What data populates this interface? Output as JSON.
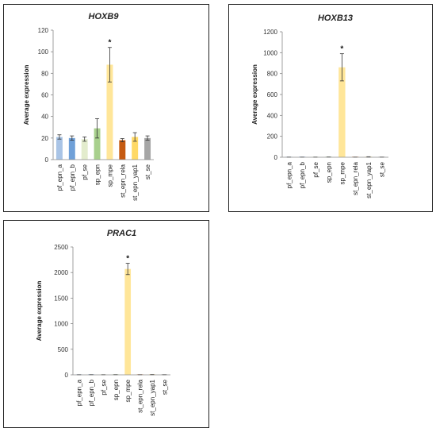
{
  "chart_data": [
    {
      "type": "bar",
      "title": "HOXB9",
      "ylabel": "Average expression",
      "xlabel": "",
      "ylim": [
        0,
        120
      ],
      "yticks": [
        0,
        20,
        40,
        60,
        80,
        100,
        120
      ],
      "categories": [
        "pf_epn_a",
        "pf_epn_b",
        "pf_se",
        "sp_epn",
        "sp_mpe",
        "st_epn_rela",
        "st_epn_yap1",
        "st_se"
      ],
      "values": [
        21,
        20,
        19,
        29,
        88,
        18,
        21,
        20
      ],
      "errors": [
        2,
        2,
        2,
        9,
        16,
        1.5,
        4,
        2
      ],
      "colors": [
        "#a9c4e6",
        "#6fa0d8",
        "#e3eccd",
        "#a8d08d",
        "#ffe699",
        "#c55a11",
        "#ffd966",
        "#a6a6a6"
      ],
      "annotations": [
        {
          "category": "sp_mpe",
          "text": "*"
        }
      ],
      "grid": false,
      "legend": "none"
    },
    {
      "type": "bar",
      "title": "HOXB13",
      "ylabel": "Average expression",
      "xlabel": "",
      "ylim": [
        0,
        1200
      ],
      "yticks": [
        0,
        200,
        400,
        600,
        800,
        1000,
        1200
      ],
      "categories": [
        "pf_epn_a",
        "pf_epn_b",
        "pf_se",
        "sp_epn",
        "sp_mpe",
        "st_epn_rela",
        "st_epn_yap1",
        "st_se"
      ],
      "values": [
        1,
        1,
        1,
        2,
        860,
        1,
        3,
        1
      ],
      "errors": [
        1,
        1,
        1,
        1,
        130,
        1,
        2,
        1
      ],
      "colors": [
        "#a9c4e6",
        "#6fa0d8",
        "#e3eccd",
        "#a8d08d",
        "#ffe699",
        "#c55a11",
        "#ffd966",
        "#a6a6a6"
      ],
      "annotations": [
        {
          "category": "sp_mpe",
          "text": "*"
        }
      ],
      "grid": false,
      "legend": "none"
    },
    {
      "type": "bar",
      "title": "PRAC1",
      "ylabel": "Average expression",
      "xlabel": "",
      "ylim": [
        0,
        2500
      ],
      "yticks": [
        0,
        500,
        1000,
        1500,
        2000,
        2500
      ],
      "categories": [
        "pf_epn_a",
        "pf_epn_b",
        "pf_se",
        "sp_epn",
        "sp_mpe",
        "st_epn_rela",
        "st_epn_yap1",
        "st_se"
      ],
      "values": [
        2,
        3,
        2,
        3,
        2070,
        2,
        4,
        2
      ],
      "errors": [
        2,
        2,
        2,
        2,
        110,
        2,
        3,
        2
      ],
      "colors": [
        "#a9c4e6",
        "#6fa0d8",
        "#e3eccd",
        "#a8d08d",
        "#ffe699",
        "#c55a11",
        "#ffd966",
        "#a6a6a6"
      ],
      "annotations": [
        {
          "category": "sp_mpe",
          "text": "*"
        }
      ],
      "grid": false,
      "legend": "none"
    }
  ]
}
